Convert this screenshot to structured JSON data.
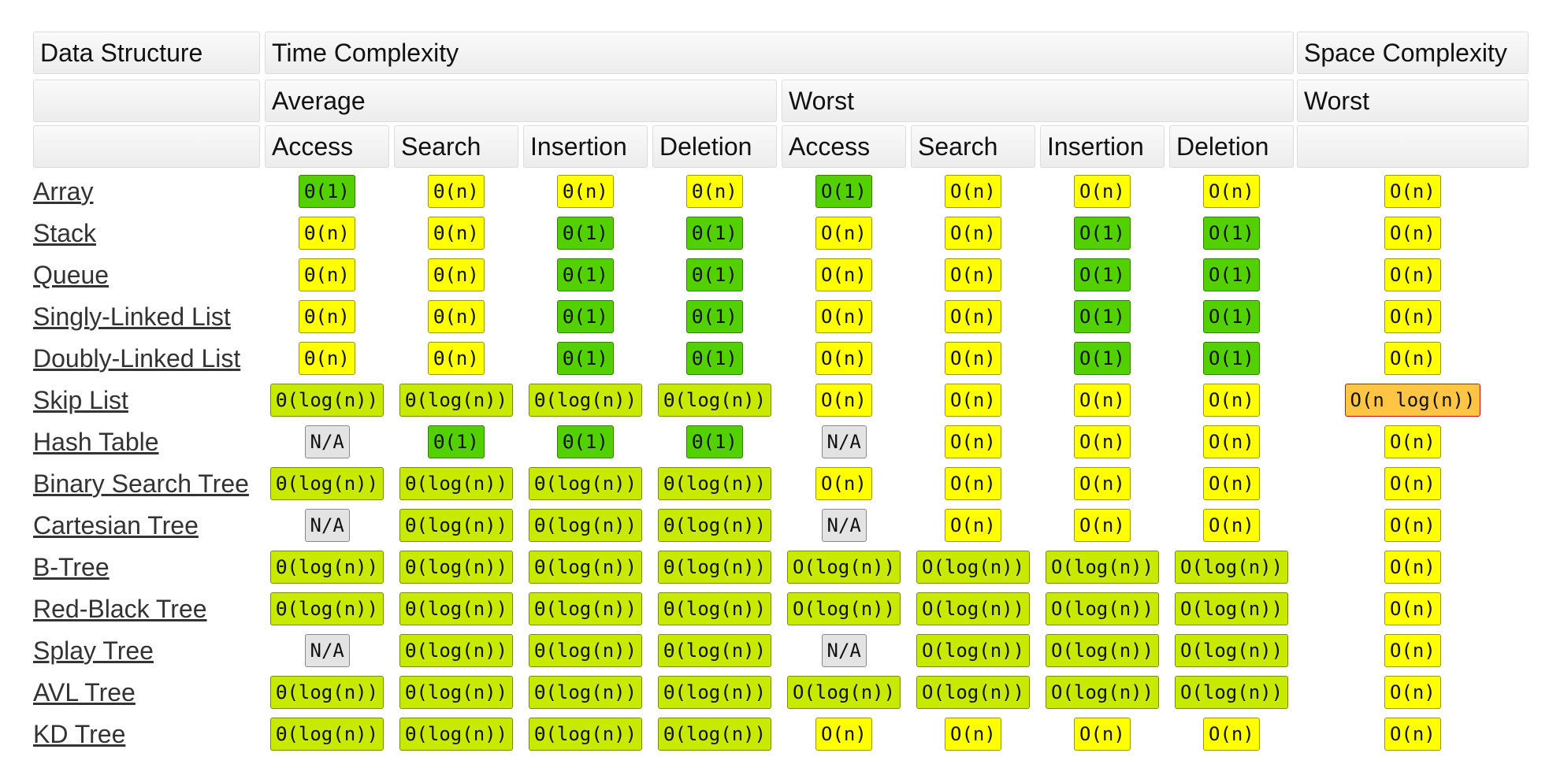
{
  "headers": {
    "data_structure": "Data Structure",
    "time_complexity": "Time Complexity",
    "space_complexity": "Space Complexity",
    "average": "Average",
    "worst_time": "Worst",
    "worst_space": "Worst",
    "operations_average": [
      "Access",
      "Search",
      "Insertion",
      "Deletion"
    ],
    "operations_worst": [
      "Access",
      "Search",
      "Insertion",
      "Deletion"
    ]
  },
  "rows": [
    {
      "name": "Array",
      "cells": [
        {
          "text": "Θ(1)",
          "color": "#53d000"
        },
        {
          "text": "Θ(n)",
          "color": "#ffff00"
        },
        {
          "text": "Θ(n)",
          "color": "#ffff00"
        },
        {
          "text": "Θ(n)",
          "color": "#ffff00"
        },
        {
          "text": "O(1)",
          "color": "#53d000"
        },
        {
          "text": "O(n)",
          "color": "#ffff00"
        },
        {
          "text": "O(n)",
          "color": "#ffff00"
        },
        {
          "text": "O(n)",
          "color": "#ffff00"
        },
        {
          "text": "O(n)",
          "color": "#ffff00"
        }
      ]
    },
    {
      "name": "Stack",
      "cells": [
        {
          "text": "Θ(n)",
          "color": "#ffff00"
        },
        {
          "text": "Θ(n)",
          "color": "#ffff00"
        },
        {
          "text": "Θ(1)",
          "color": "#53d000"
        },
        {
          "text": "Θ(1)",
          "color": "#53d000"
        },
        {
          "text": "O(n)",
          "color": "#ffff00"
        },
        {
          "text": "O(n)",
          "color": "#ffff00"
        },
        {
          "text": "O(1)",
          "color": "#53d000"
        },
        {
          "text": "O(1)",
          "color": "#53d000"
        },
        {
          "text": "O(n)",
          "color": "#ffff00"
        }
      ]
    },
    {
      "name": "Queue",
      "cells": [
        {
          "text": "Θ(n)",
          "color": "#ffff00"
        },
        {
          "text": "Θ(n)",
          "color": "#ffff00"
        },
        {
          "text": "Θ(1)",
          "color": "#53d000"
        },
        {
          "text": "Θ(1)",
          "color": "#53d000"
        },
        {
          "text": "O(n)",
          "color": "#ffff00"
        },
        {
          "text": "O(n)",
          "color": "#ffff00"
        },
        {
          "text": "O(1)",
          "color": "#53d000"
        },
        {
          "text": "O(1)",
          "color": "#53d000"
        },
        {
          "text": "O(n)",
          "color": "#ffff00"
        }
      ]
    },
    {
      "name": "Singly-Linked List",
      "cells": [
        {
          "text": "Θ(n)",
          "color": "#ffff00"
        },
        {
          "text": "Θ(n)",
          "color": "#ffff00"
        },
        {
          "text": "Θ(1)",
          "color": "#53d000"
        },
        {
          "text": "Θ(1)",
          "color": "#53d000"
        },
        {
          "text": "O(n)",
          "color": "#ffff00"
        },
        {
          "text": "O(n)",
          "color": "#ffff00"
        },
        {
          "text": "O(1)",
          "color": "#53d000"
        },
        {
          "text": "O(1)",
          "color": "#53d000"
        },
        {
          "text": "O(n)",
          "color": "#ffff00"
        }
      ]
    },
    {
      "name": "Doubly-Linked List",
      "cells": [
        {
          "text": "Θ(n)",
          "color": "#ffff00"
        },
        {
          "text": "Θ(n)",
          "color": "#ffff00"
        },
        {
          "text": "Θ(1)",
          "color": "#53d000"
        },
        {
          "text": "Θ(1)",
          "color": "#53d000"
        },
        {
          "text": "O(n)",
          "color": "#ffff00"
        },
        {
          "text": "O(n)",
          "color": "#ffff00"
        },
        {
          "text": "O(1)",
          "color": "#53d000"
        },
        {
          "text": "O(1)",
          "color": "#53d000"
        },
        {
          "text": "O(n)",
          "color": "#ffff00"
        }
      ]
    },
    {
      "name": "Skip List",
      "cells": [
        {
          "text": "Θ(log(n))",
          "color": "#c8ea00"
        },
        {
          "text": "Θ(log(n))",
          "color": "#c8ea00"
        },
        {
          "text": "Θ(log(n))",
          "color": "#c8ea00"
        },
        {
          "text": "Θ(log(n))",
          "color": "#c8ea00"
        },
        {
          "text": "O(n)",
          "color": "#ffff00"
        },
        {
          "text": "O(n)",
          "color": "#ffff00"
        },
        {
          "text": "O(n)",
          "color": "#ffff00"
        },
        {
          "text": "O(n)",
          "color": "#ffff00"
        },
        {
          "text": "O(n log(n))",
          "color": "#ffc543"
        }
      ]
    },
    {
      "name": "Hash Table",
      "cells": [
        {
          "text": "N/A",
          "color": "#e3e3e3"
        },
        {
          "text": "Θ(1)",
          "color": "#53d000"
        },
        {
          "text": "Θ(1)",
          "color": "#53d000"
        },
        {
          "text": "Θ(1)",
          "color": "#53d000"
        },
        {
          "text": "N/A",
          "color": "#e3e3e3"
        },
        {
          "text": "O(n)",
          "color": "#ffff00"
        },
        {
          "text": "O(n)",
          "color": "#ffff00"
        },
        {
          "text": "O(n)",
          "color": "#ffff00"
        },
        {
          "text": "O(n)",
          "color": "#ffff00"
        }
      ]
    },
    {
      "name": "Binary Search Tree",
      "cells": [
        {
          "text": "Θ(log(n))",
          "color": "#c8ea00"
        },
        {
          "text": "Θ(log(n))",
          "color": "#c8ea00"
        },
        {
          "text": "Θ(log(n))",
          "color": "#c8ea00"
        },
        {
          "text": "Θ(log(n))",
          "color": "#c8ea00"
        },
        {
          "text": "O(n)",
          "color": "#ffff00"
        },
        {
          "text": "O(n)",
          "color": "#ffff00"
        },
        {
          "text": "O(n)",
          "color": "#ffff00"
        },
        {
          "text": "O(n)",
          "color": "#ffff00"
        },
        {
          "text": "O(n)",
          "color": "#ffff00"
        }
      ]
    },
    {
      "name": "Cartesian Tree",
      "cells": [
        {
          "text": "N/A",
          "color": "#e3e3e3"
        },
        {
          "text": "Θ(log(n))",
          "color": "#c8ea00"
        },
        {
          "text": "Θ(log(n))",
          "color": "#c8ea00"
        },
        {
          "text": "Θ(log(n))",
          "color": "#c8ea00"
        },
        {
          "text": "N/A",
          "color": "#e3e3e3"
        },
        {
          "text": "O(n)",
          "color": "#ffff00"
        },
        {
          "text": "O(n)",
          "color": "#ffff00"
        },
        {
          "text": "O(n)",
          "color": "#ffff00"
        },
        {
          "text": "O(n)",
          "color": "#ffff00"
        }
      ]
    },
    {
      "name": "B-Tree",
      "cells": [
        {
          "text": "Θ(log(n))",
          "color": "#c8ea00"
        },
        {
          "text": "Θ(log(n))",
          "color": "#c8ea00"
        },
        {
          "text": "Θ(log(n))",
          "color": "#c8ea00"
        },
        {
          "text": "Θ(log(n))",
          "color": "#c8ea00"
        },
        {
          "text": "O(log(n))",
          "color": "#c8ea00"
        },
        {
          "text": "O(log(n))",
          "color": "#c8ea00"
        },
        {
          "text": "O(log(n))",
          "color": "#c8ea00"
        },
        {
          "text": "O(log(n))",
          "color": "#c8ea00"
        },
        {
          "text": "O(n)",
          "color": "#ffff00"
        }
      ]
    },
    {
      "name": "Red-Black Tree",
      "cells": [
        {
          "text": "Θ(log(n))",
          "color": "#c8ea00"
        },
        {
          "text": "Θ(log(n))",
          "color": "#c8ea00"
        },
        {
          "text": "Θ(log(n))",
          "color": "#c8ea00"
        },
        {
          "text": "Θ(log(n))",
          "color": "#c8ea00"
        },
        {
          "text": "O(log(n))",
          "color": "#c8ea00"
        },
        {
          "text": "O(log(n))",
          "color": "#c8ea00"
        },
        {
          "text": "O(log(n))",
          "color": "#c8ea00"
        },
        {
          "text": "O(log(n))",
          "color": "#c8ea00"
        },
        {
          "text": "O(n)",
          "color": "#ffff00"
        }
      ]
    },
    {
      "name": "Splay Tree",
      "cells": [
        {
          "text": "N/A",
          "color": "#e3e3e3"
        },
        {
          "text": "Θ(log(n))",
          "color": "#c8ea00"
        },
        {
          "text": "Θ(log(n))",
          "color": "#c8ea00"
        },
        {
          "text": "Θ(log(n))",
          "color": "#c8ea00"
        },
        {
          "text": "N/A",
          "color": "#e3e3e3"
        },
        {
          "text": "O(log(n))",
          "color": "#c8ea00"
        },
        {
          "text": "O(log(n))",
          "color": "#c8ea00"
        },
        {
          "text": "O(log(n))",
          "color": "#c8ea00"
        },
        {
          "text": "O(n)",
          "color": "#ffff00"
        }
      ]
    },
    {
      "name": "AVL Tree",
      "cells": [
        {
          "text": "Θ(log(n))",
          "color": "#c8ea00"
        },
        {
          "text": "Θ(log(n))",
          "color": "#c8ea00"
        },
        {
          "text": "Θ(log(n))",
          "color": "#c8ea00"
        },
        {
          "text": "Θ(log(n))",
          "color": "#c8ea00"
        },
        {
          "text": "O(log(n))",
          "color": "#c8ea00"
        },
        {
          "text": "O(log(n))",
          "color": "#c8ea00"
        },
        {
          "text": "O(log(n))",
          "color": "#c8ea00"
        },
        {
          "text": "O(log(n))",
          "color": "#c8ea00"
        },
        {
          "text": "O(n)",
          "color": "#ffff00"
        }
      ]
    },
    {
      "name": "KD Tree",
      "cells": [
        {
          "text": "Θ(log(n))",
          "color": "#c8ea00"
        },
        {
          "text": "Θ(log(n))",
          "color": "#c8ea00"
        },
        {
          "text": "Θ(log(n))",
          "color": "#c8ea00"
        },
        {
          "text": "Θ(log(n))",
          "color": "#c8ea00"
        },
        {
          "text": "O(n)",
          "color": "#ffff00"
        },
        {
          "text": "O(n)",
          "color": "#ffff00"
        },
        {
          "text": "O(n)",
          "color": "#ffff00"
        },
        {
          "text": "O(n)",
          "color": "#ffff00"
        },
        {
          "text": "O(n)",
          "color": "#ffff00"
        }
      ]
    }
  ]
}
